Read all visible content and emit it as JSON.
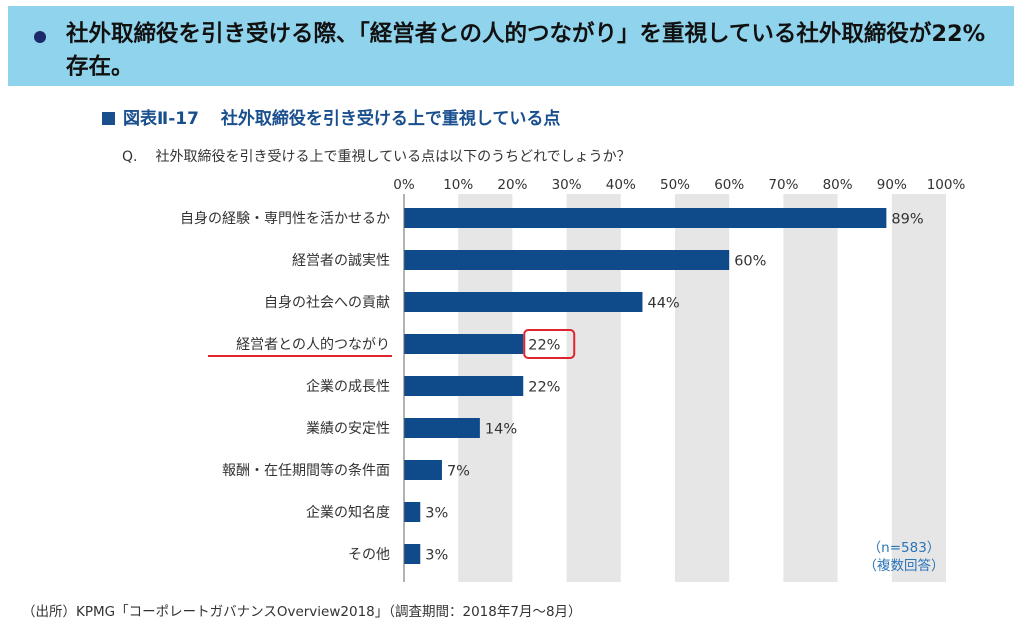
{
  "banner": {
    "text": "社外取締役を引き受ける際、「経営者との人的つながり」を重視している社外取締役が22%存在。"
  },
  "figure": {
    "number": "図表Ⅱ-17",
    "title": "社外取締役を引き受ける上で重視している点"
  },
  "question": {
    "prefix": "Q.",
    "text": "社外取締役を引き受ける上で重視している点は以下のうちどれでしょうか？"
  },
  "source": "（出所）KPMG「コーポレートガバナンスOverview2018」（調査期間：2018年7月〜8月）",
  "chart_data": {
    "type": "bar",
    "orientation": "horizontal",
    "categories": [
      "自身の経験・専門性を活かせるか",
      "経営者の誠実性",
      "自身の社会への貢献",
      "経営者との人的つながり",
      "企業の成長性",
      "業績の安定性",
      "報酬・在任期間等の条件面",
      "企業の知名度",
      "その他"
    ],
    "values": [
      89,
      60,
      44,
      22,
      22,
      14,
      7,
      3,
      3
    ],
    "value_labels": [
      "89%",
      "60%",
      "44%",
      "22%",
      "22%",
      "14%",
      "7%",
      "3%",
      "3%"
    ],
    "x_ticks": [
      "0%",
      "10%",
      "20%",
      "30%",
      "40%",
      "50%",
      "60%",
      "70%",
      "80%",
      "90%",
      "100%"
    ],
    "xlim": [
      0,
      100
    ],
    "highlight_index": 3,
    "bar_color": "#0f4a8a",
    "band_color": "#e6e6e6",
    "highlight_color": "#e0242f",
    "note": [
      "（n=583）",
      "（複数回答）"
    ],
    "note_color": "#2a74b8",
    "grid": "alternating vertical bands"
  }
}
